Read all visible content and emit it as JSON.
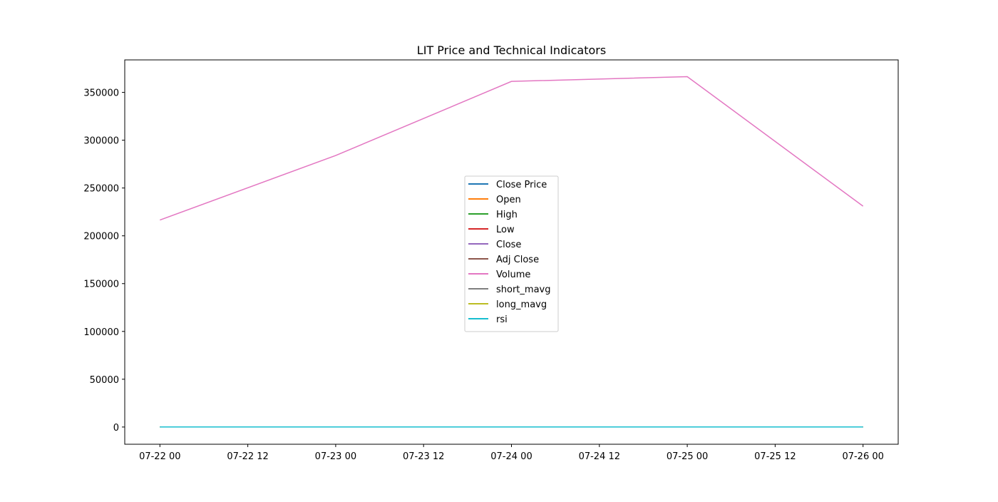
{
  "chart_data": {
    "type": "line",
    "title": "LIT Price and Technical Indicators",
    "xlabel": "",
    "ylabel": "",
    "x": [
      "2024-07-22T00:00",
      "2024-07-23T00:00",
      "2024-07-24T00:00",
      "2024-07-25T00:00",
      "2024-07-26T00:00"
    ],
    "x_tick_labels": [
      "07-22 00",
      "07-22 12",
      "07-23 00",
      "07-23 12",
      "07-24 00",
      "07-24 12",
      "07-25 00",
      "07-25 12",
      "07-26 00"
    ],
    "y_tick_values": [
      0,
      50000,
      100000,
      150000,
      200000,
      250000,
      300000,
      350000
    ],
    "ylim": [
      -18000,
      384000
    ],
    "grid": false,
    "legend_position": "center",
    "series": [
      {
        "name": "Close Price",
        "color": "#1f77b4",
        "values": [
          40,
          40,
          41,
          40,
          40
        ]
      },
      {
        "name": "Open",
        "color": "#ff7f0e",
        "values": [
          40,
          40,
          41,
          40,
          40
        ]
      },
      {
        "name": "High",
        "color": "#2ca02c",
        "values": [
          41,
          41,
          42,
          41,
          41
        ]
      },
      {
        "name": "Low",
        "color": "#d62728",
        "values": [
          39,
          39,
          40,
          39,
          39
        ]
      },
      {
        "name": "Close",
        "color": "#9467bd",
        "values": [
          40,
          40,
          41,
          40,
          40
        ]
      },
      {
        "name": "Adj Close",
        "color": "#8c564b",
        "values": [
          40,
          40,
          41,
          40,
          40
        ]
      },
      {
        "name": "Volume",
        "color": "#e377c2",
        "values": [
          216500,
          284000,
          361500,
          366500,
          231000
        ]
      },
      {
        "name": "short_mavg",
        "color": "#7f7f7f",
        "values": [
          40,
          40,
          40,
          40,
          40
        ]
      },
      {
        "name": "long_mavg",
        "color": "#bcbd22",
        "values": [
          40,
          40,
          40,
          40,
          40
        ]
      },
      {
        "name": "rsi",
        "color": "#17becf",
        "values": [
          50,
          50,
          55,
          50,
          45
        ]
      }
    ]
  }
}
